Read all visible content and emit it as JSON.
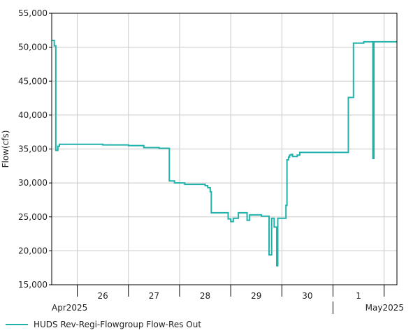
{
  "chart_data": {
    "type": "line",
    "title": "",
    "ylabel": "Flow(cfs)",
    "xlabel": "",
    "ylim": [
      15000,
      55000
    ],
    "yticks": [
      15000,
      20000,
      25000,
      30000,
      35000,
      40000,
      45000,
      50000,
      55000
    ],
    "ytick_labels": [
      "15,000",
      "20,000",
      "25,000",
      "30,000",
      "35,000",
      "40,000",
      "45,000",
      "50,000",
      "55,000"
    ],
    "xlim": [
      0,
      6.75
    ],
    "day_ticks": [
      0.5,
      1.5,
      2.5,
      3.5,
      4.5,
      5.5,
      6.5
    ],
    "day_labels": [
      {
        "x": 1,
        "label": "26"
      },
      {
        "x": 2,
        "label": "27"
      },
      {
        "x": 3,
        "label": "28"
      },
      {
        "x": 4,
        "label": "29"
      },
      {
        "x": 5,
        "label": "30"
      },
      {
        "x": 6,
        "label": "1"
      }
    ],
    "month_labels": [
      {
        "x": 0,
        "label": "Apr2025",
        "align": "start"
      },
      {
        "x": 6.75,
        "label": "May2025",
        "align": "end"
      }
    ],
    "month_divider_x": 5.5,
    "grid": true,
    "legend_position": "bottom-left",
    "series": [
      {
        "name": "HUDS Rev-Regi-Flowgroup Flow-Res Out",
        "color": "#20b2aa",
        "step": true,
        "x": [
          0.0,
          0.05,
          0.08,
          0.12,
          0.15,
          0.2,
          0.5,
          1.0,
          1.5,
          1.8,
          1.95,
          2.1,
          2.3,
          2.4,
          2.6,
          3.0,
          3.05,
          3.1,
          3.12,
          3.15,
          3.4,
          3.45,
          3.5,
          3.55,
          3.65,
          3.72,
          3.82,
          3.87,
          4.0,
          4.1,
          4.15,
          4.25,
          4.3,
          4.35,
          4.4,
          4.42,
          4.45,
          4.5,
          4.58,
          4.6,
          4.63,
          4.65,
          4.68,
          4.71,
          4.75,
          4.8,
          4.85,
          4.9,
          5.0,
          5.5,
          5.75,
          5.8,
          5.9,
          6.1,
          6.2,
          6.22,
          6.28,
          6.3,
          6.75
        ],
        "y": [
          51000,
          50200,
          34800,
          35400,
          35700,
          35700,
          35700,
          35600,
          35500,
          35200,
          35200,
          35100,
          30300,
          30000,
          29800,
          29600,
          29300,
          28700,
          25600,
          25600,
          25600,
          24700,
          24300,
          24800,
          25600,
          25600,
          24500,
          25300,
          25300,
          25100,
          25100,
          19400,
          24800,
          23500,
          17800,
          24800,
          24800,
          24800,
          26700,
          33400,
          33800,
          34100,
          34200,
          33900,
          33900,
          34100,
          34500,
          34500,
          34500,
          34500,
          34500,
          42600,
          50600,
          50800,
          50800,
          50800,
          33600,
          50800,
          50800
        ]
      }
    ]
  }
}
